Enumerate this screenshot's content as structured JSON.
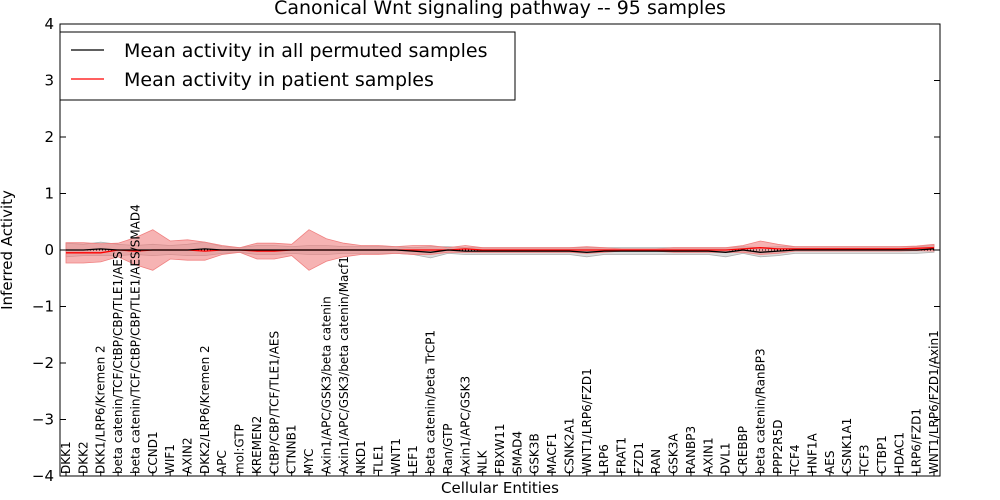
{
  "chart_data": {
    "type": "line",
    "title": "Canonical Wnt signaling pathway -- 95 samples",
    "xlabel": "Cellular Entities",
    "ylabel": "Inferred Activity",
    "ylim": [
      -4,
      4
    ],
    "yticks": [
      -4,
      -3,
      -2,
      -1,
      0,
      1,
      2,
      3,
      4
    ],
    "ytick_labels": [
      "−4",
      "−3",
      "−2",
      "−1",
      "0",
      "1",
      "2",
      "3",
      "4"
    ],
    "legend_position": "top-left",
    "categories": [
      "DKK1",
      "DKK2",
      "DKK1/LRP6/Kremen 2",
      "beta catenin/TCF/CtBP/CBP/TLE1/AES",
      "beta catenin/TCF/CtBP/CBP/TLE1/AES/SMAD4",
      "CCND1",
      "WIF1",
      "AXIN2",
      "DKK2/LRP6/Kremen 2",
      "APC",
      "mol:GTP",
      "KREMEN2",
      "CtBP/CBP/TCF/TLE1/AES",
      "CTNNB1",
      "MYC",
      "Axin1/APC/GSK3/beta catenin",
      "Axin1/APC/GSK3/beta catenin/Macf1",
      "NKD1",
      "TLE1",
      "WNT1",
      "LEF1",
      "beta catenin/beta TrCP1",
      "Ran/GTP",
      "Axin1/APC/GSK3",
      "NLK",
      "FBXW11",
      "SMAD4",
      "GSK3B",
      "MACF1",
      "CSNK2A1",
      "WNT1/LRP6/FZD1",
      "LRP6",
      "FRAT1",
      "FZD1",
      "RAN",
      "GSK3A",
      "RANBP3",
      "AXIN1",
      "DVL1",
      "CREBBP",
      "beta catenin/RanBP3",
      "PPP2R5D",
      "TCF4",
      "HNF1A",
      "AES",
      "CSNK1A1",
      "TCF3",
      "CTBP1",
      "HDAC1",
      "LRP6/FZD1",
      "WNT1/LRP6/FZD1/Axin1"
    ],
    "series": [
      {
        "name": "Mean activity in all permuted samples",
        "color": "#000000",
        "band_color": "#b0b0b0",
        "values": [
          0.0,
          0.0,
          0.02,
          0.0,
          0.0,
          0.0,
          0.0,
          0.0,
          0.02,
          0.0,
          0.0,
          0.0,
          0.0,
          0.0,
          0.0,
          0.0,
          0.0,
          0.0,
          0.0,
          0.0,
          -0.02,
          -0.04,
          0.0,
          -0.02,
          -0.02,
          -0.02,
          -0.02,
          -0.02,
          -0.02,
          -0.02,
          -0.04,
          -0.02,
          -0.02,
          -0.02,
          -0.02,
          -0.02,
          -0.02,
          -0.02,
          -0.04,
          0.0,
          -0.04,
          -0.02,
          0.0,
          0.0,
          0.0,
          0.0,
          0.0,
          0.0,
          0.0,
          0.0,
          0.02
        ],
        "spread": [
          0.12,
          0.1,
          0.12,
          0.1,
          0.08,
          0.1,
          0.08,
          0.1,
          0.12,
          0.06,
          0.04,
          0.08,
          0.08,
          0.06,
          0.08,
          0.08,
          0.06,
          0.06,
          0.06,
          0.06,
          0.06,
          0.1,
          0.06,
          0.06,
          0.06,
          0.06,
          0.06,
          0.06,
          0.06,
          0.06,
          0.08,
          0.06,
          0.06,
          0.06,
          0.06,
          0.06,
          0.06,
          0.06,
          0.08,
          0.06,
          0.08,
          0.08,
          0.06,
          0.06,
          0.06,
          0.06,
          0.06,
          0.06,
          0.06,
          0.06,
          0.06
        ]
      },
      {
        "name": "Mean activity in patient samples",
        "color": "#ff0000",
        "band_color": "#f08080",
        "values": [
          -0.05,
          -0.05,
          -0.05,
          0.0,
          -0.02,
          0.0,
          0.0,
          0.0,
          -0.02,
          0.0,
          0.0,
          -0.02,
          -0.02,
          0.0,
          0.0,
          0.0,
          0.0,
          0.0,
          0.0,
          0.0,
          0.0,
          0.0,
          0.0,
          0.02,
          0.0,
          0.0,
          0.0,
          0.0,
          0.0,
          0.0,
          0.0,
          0.0,
          0.0,
          0.0,
          0.0,
          0.0,
          0.0,
          0.0,
          0.0,
          0.02,
          0.04,
          0.02,
          0.02,
          0.02,
          0.02,
          0.02,
          0.02,
          0.02,
          0.02,
          0.03,
          0.04
        ],
        "spread": [
          0.18,
          0.18,
          0.16,
          0.12,
          0.24,
          0.36,
          0.16,
          0.18,
          0.16,
          0.08,
          0.04,
          0.14,
          0.14,
          0.1,
          0.36,
          0.2,
          0.12,
          0.08,
          0.08,
          0.06,
          0.08,
          0.08,
          0.04,
          0.06,
          0.04,
          0.04,
          0.04,
          0.04,
          0.04,
          0.04,
          0.06,
          0.04,
          0.02,
          0.02,
          0.02,
          0.04,
          0.04,
          0.04,
          0.04,
          0.06,
          0.12,
          0.08,
          0.04,
          0.04,
          0.04,
          0.04,
          0.04,
          0.04,
          0.04,
          0.04,
          0.06
        ]
      }
    ]
  }
}
